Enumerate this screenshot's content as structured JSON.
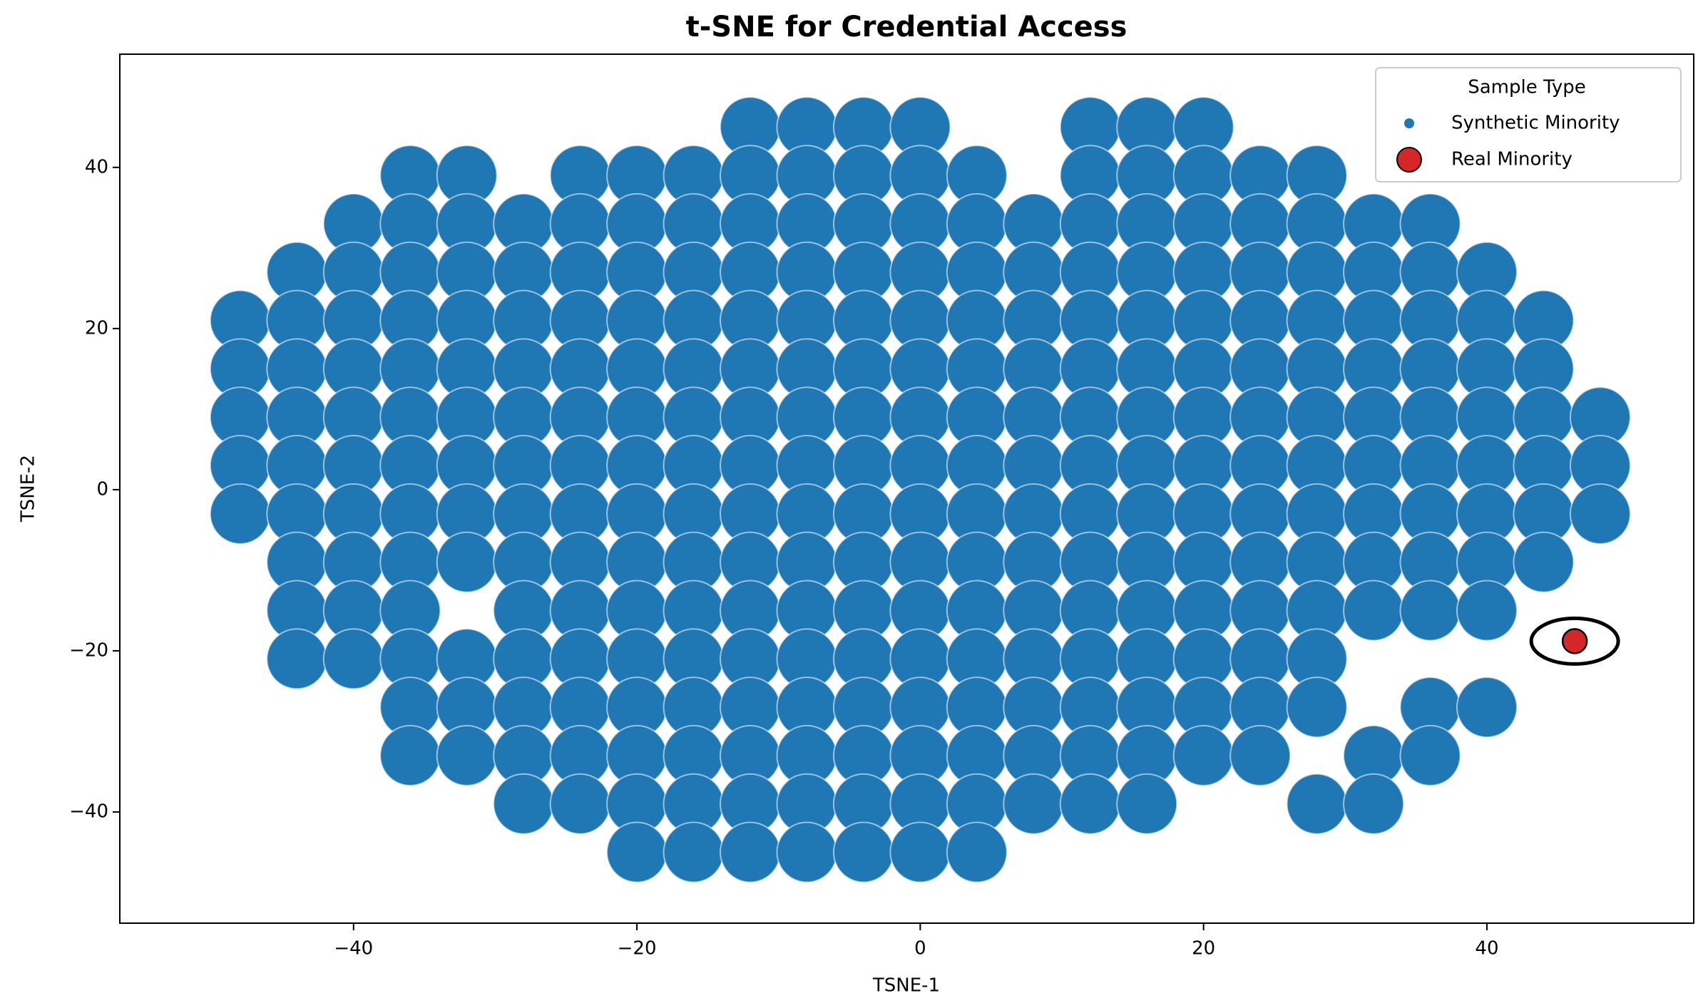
{
  "chart_data": {
    "type": "scatter",
    "title": "t-SNE for Credential Access",
    "x_label": "TSNE-1",
    "y_label": "TSNE-2",
    "xlim": [
      -56.5,
      54.6
    ],
    "ylim": [
      -53.8,
      54.05
    ],
    "xticks": [
      {
        "value": -40,
        "label": "−40"
      },
      {
        "value": -20,
        "label": "−20"
      },
      0,
      20,
      40
    ],
    "yticks": [
      {
        "value": -40,
        "label": "−40"
      },
      {
        "value": -20,
        "label": "−20"
      },
      0,
      20,
      40
    ],
    "legend_title": "Sample Type",
    "legend_position": "upper right",
    "grid": false,
    "series": [
      {
        "name": "Synthetic Minority",
        "color": "#1f77b4",
        "x": [
          -12,
          -8,
          -4,
          0,
          12,
          16,
          20,
          -36,
          -32,
          -24,
          -20,
          -16,
          -12,
          -8,
          -4,
          0,
          4,
          12,
          16,
          20,
          24,
          28,
          -40,
          -36,
          -32,
          -28,
          -24,
          -20,
          -16,
          -12,
          -8,
          -4,
          0,
          4,
          8,
          12,
          16,
          20,
          24,
          28,
          32,
          36,
          -44,
          -40,
          -36,
          -32,
          -28,
          -24,
          -20,
          -16,
          -12,
          -8,
          -4,
          0,
          4,
          8,
          12,
          16,
          20,
          24,
          28,
          32,
          36,
          40,
          -48,
          -44,
          -40,
          -36,
          -32,
          -28,
          -24,
          -20,
          -16,
          -12,
          -8,
          -4,
          0,
          4,
          8,
          12,
          16,
          20,
          24,
          28,
          32,
          36,
          40,
          44,
          -48,
          -44,
          -40,
          -36,
          -32,
          -28,
          -24,
          -20,
          -16,
          -12,
          -8,
          -4,
          0,
          4,
          8,
          12,
          16,
          20,
          24,
          28,
          32,
          36,
          40,
          44,
          -48,
          -44,
          -40,
          -36,
          -32,
          -28,
          -24,
          -20,
          -16,
          -12,
          -8,
          -4,
          0,
          4,
          8,
          12,
          16,
          20,
          24,
          28,
          32,
          36,
          40,
          44,
          48,
          -48,
          -44,
          -40,
          -36,
          -32,
          -28,
          -24,
          -20,
          -16,
          -12,
          -8,
          -4,
          0,
          4,
          8,
          12,
          16,
          20,
          24,
          28,
          32,
          36,
          40,
          44,
          48,
          -48,
          -44,
          -40,
          -36,
          -32,
          -28,
          -24,
          -20,
          -16,
          -12,
          -8,
          -4,
          0,
          4,
          8,
          12,
          16,
          20,
          24,
          28,
          32,
          36,
          40,
          44,
          48,
          -44,
          -40,
          -36,
          -32,
          -28,
          -24,
          -20,
          -16,
          -12,
          -8,
          -4,
          0,
          4,
          8,
          12,
          16,
          20,
          24,
          28,
          32,
          36,
          40,
          44,
          -44,
          -40,
          -36,
          -28,
          -24,
          -20,
          -16,
          -12,
          -8,
          -4,
          0,
          4,
          8,
          12,
          16,
          20,
          24,
          28,
          32,
          36,
          40,
          -44,
          -40,
          -36,
          -32,
          -28,
          -24,
          -20,
          -16,
          -12,
          -8,
          -4,
          0,
          4,
          8,
          12,
          16,
          20,
          24,
          28,
          -36,
          -32,
          -28,
          -24,
          -20,
          -16,
          -12,
          -8,
          -4,
          0,
          4,
          8,
          12,
          16,
          20,
          24,
          28,
          36,
          40,
          -36,
          -32,
          -28,
          -24,
          -20,
          -16,
          -12,
          -8,
          -4,
          0,
          4,
          8,
          12,
          16,
          20,
          24,
          32,
          36,
          -28,
          -24,
          -20,
          -16,
          -12,
          -8,
          -4,
          0,
          4,
          8,
          12,
          16,
          28,
          32,
          -20,
          -16,
          -12,
          -8,
          -4,
          0,
          4
        ],
        "y": [
          45,
          45,
          45,
          45,
          45,
          45,
          45,
          39,
          39,
          39,
          39,
          39,
          39,
          39,
          39,
          39,
          39,
          39,
          39,
          39,
          39,
          39,
          33,
          33,
          33,
          33,
          33,
          33,
          33,
          33,
          33,
          33,
          33,
          33,
          33,
          33,
          33,
          33,
          33,
          33,
          33,
          33,
          27,
          27,
          27,
          27,
          27,
          27,
          27,
          27,
          27,
          27,
          27,
          27,
          27,
          27,
          27,
          27,
          27,
          27,
          27,
          27,
          27,
          27,
          21,
          21,
          21,
          21,
          21,
          21,
          21,
          21,
          21,
          21,
          21,
          21,
          21,
          21,
          21,
          21,
          21,
          21,
          21,
          21,
          21,
          21,
          21,
          21,
          15,
          15,
          15,
          15,
          15,
          15,
          15,
          15,
          15,
          15,
          15,
          15,
          15,
          15,
          15,
          15,
          15,
          15,
          15,
          15,
          15,
          15,
          15,
          15,
          9,
          9,
          9,
          9,
          9,
          9,
          9,
          9,
          9,
          9,
          9,
          9,
          9,
          9,
          9,
          9,
          9,
          9,
          9,
          9,
          9,
          9,
          9,
          9,
          9,
          3,
          3,
          3,
          3,
          3,
          3,
          3,
          3,
          3,
          3,
          3,
          3,
          3,
          3,
          3,
          3,
          3,
          3,
          3,
          3,
          3,
          3,
          3,
          3,
          3,
          -3,
          -3,
          -3,
          -3,
          -3,
          -3,
          -3,
          -3,
          -3,
          -3,
          -3,
          -3,
          -3,
          -3,
          -3,
          -3,
          -3,
          -3,
          -3,
          -3,
          -3,
          -3,
          -3,
          -3,
          -3,
          -9,
          -9,
          -9,
          -9,
          -9,
          -9,
          -9,
          -9,
          -9,
          -9,
          -9,
          -9,
          -9,
          -9,
          -9,
          -9,
          -9,
          -9,
          -9,
          -9,
          -9,
          -9,
          -9,
          -15,
          -15,
          -15,
          -15,
          -15,
          -15,
          -15,
          -15,
          -15,
          -15,
          -15,
          -15,
          -15,
          -15,
          -15,
          -15,
          -15,
          -15,
          -15,
          -15,
          -15,
          -21,
          -21,
          -21,
          -21,
          -21,
          -21,
          -21,
          -21,
          -21,
          -21,
          -21,
          -21,
          -21,
          -21,
          -21,
          -21,
          -21,
          -21,
          -21,
          -27,
          -27,
          -27,
          -27,
          -27,
          -27,
          -27,
          -27,
          -27,
          -27,
          -27,
          -27,
          -27,
          -27,
          -27,
          -27,
          -27,
          -27,
          -27,
          -33,
          -33,
          -33,
          -33,
          -33,
          -33,
          -33,
          -33,
          -33,
          -33,
          -33,
          -33,
          -33,
          -33,
          -33,
          -33,
          -33,
          -33,
          -39,
          -39,
          -39,
          -39,
          -39,
          -39,
          -39,
          -39,
          -39,
          -39,
          -39,
          -39,
          -39,
          -39,
          -45,
          -45,
          -45,
          -45,
          -45,
          -45,
          -45
        ]
      },
      {
        "name": "Real Minority",
        "color": "#d62728",
        "x": [
          46.2
        ],
        "y": [
          -18.8
        ]
      }
    ]
  }
}
